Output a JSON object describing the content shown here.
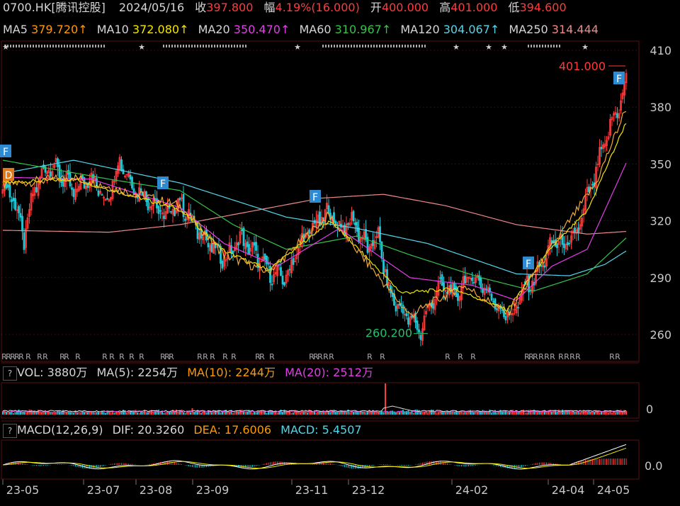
{
  "header": {
    "code": "0700.HK[腾讯控股]",
    "date": "2024/05/16",
    "close_label": "收",
    "close": "397.800",
    "change_label": "幅",
    "change": "4.19%(16.000)",
    "open_label": "开",
    "open": "400.000",
    "high_label": "高",
    "high": "401.000",
    "low_label": "低",
    "low": "394.600"
  },
  "ma_legend": [
    {
      "name": "MA5",
      "value": "379.720↑",
      "color": "#f2a93b"
    },
    {
      "name": "MA10",
      "value": "372.080↑",
      "color": "#f2e600"
    },
    {
      "name": "MA20",
      "value": "350.470↑",
      "color": "#e23ee8"
    },
    {
      "name": "MA60",
      "value": "310.967↑",
      "color": "#35c24b"
    },
    {
      "name": "MA120",
      "value": "304.067↑",
      "color": "#53d5ea"
    },
    {
      "name": "MA250",
      "value": "314.444",
      "color": "#f08a8a"
    }
  ],
  "volume_legend": {
    "help": "?",
    "vol": "VOL: 3880万",
    "ma5": "MA(5): 2254万",
    "ma10": "MA(10): 2244万",
    "ma20": "MA(20): 2512万"
  },
  "macd_legend": {
    "help": "?",
    "name": "MACD(12,26,9)",
    "dif": "DIF: 20.3260",
    "dea": "DEA: 17.6006",
    "macd": "MACD: 5.4507"
  },
  "chart_data": {
    "type": "candlestick",
    "price_axis": {
      "ticks": [
        410,
        380,
        350,
        320,
        290,
        260
      ]
    },
    "volume_axis": {
      "ticks": [
        0
      ]
    },
    "macd_axis": {
      "ticks": [
        "0.0"
      ]
    },
    "x_ticks": [
      "23-05",
      "23-07",
      "23-08",
      "23-09",
      "23-11",
      "23-12",
      "24-02",
      "24-04",
      "24-05"
    ],
    "annotations": {
      "high": "401.000",
      "low": "260.200",
      "markers": [
        "F",
        "D",
        "F",
        "F",
        "F",
        "F"
      ],
      "stars": [
        "★",
        "★",
        "★",
        "★",
        "★",
        "★",
        "★"
      ],
      "r_label": "R"
    },
    "anchor_closes": [
      [
        0,
        340
      ],
      [
        6,
        332
      ],
      [
        12,
        310
      ],
      [
        18,
        338
      ],
      [
        26,
        350
      ],
      [
        32,
        345
      ],
      [
        40,
        335
      ],
      [
        50,
        344
      ],
      [
        58,
        330
      ],
      [
        66,
        352
      ],
      [
        74,
        338
      ],
      [
        84,
        330
      ],
      [
        92,
        322
      ],
      [
        100,
        330
      ],
      [
        108,
        318
      ],
      [
        118,
        306
      ],
      [
        126,
        300
      ],
      [
        134,
        311
      ],
      [
        140,
        305
      ],
      [
        146,
        298
      ],
      [
        152,
        292
      ],
      [
        160,
        290
      ],
      [
        168,
        308
      ],
      [
        176,
        318
      ],
      [
        184,
        325
      ],
      [
        190,
        316
      ],
      [
        198,
        320
      ],
      [
        206,
        305
      ],
      [
        212,
        312
      ],
      [
        218,
        282
      ],
      [
        224,
        274
      ],
      [
        230,
        268
      ],
      [
        236,
        262
      ],
      [
        242,
        278
      ],
      [
        248,
        286
      ],
      [
        256,
        280
      ],
      [
        262,
        290
      ],
      [
        270,
        288
      ],
      [
        276,
        279
      ],
      [
        282,
        272
      ],
      [
        288,
        270
      ],
      [
        294,
        284
      ],
      [
        300,
        289
      ],
      [
        306,
        300
      ],
      [
        312,
        310
      ],
      [
        318,
        306
      ],
      [
        324,
        313
      ],
      [
        330,
        332
      ],
      [
        334,
        342
      ],
      [
        338,
        356
      ],
      [
        342,
        366
      ],
      [
        346,
        378
      ],
      [
        350,
        384
      ],
      [
        352,
        397.8
      ]
    ],
    "ma_series": [
      {
        "key": "ma250",
        "anchors": [
          [
            0,
            315
          ],
          [
            60,
            314
          ],
          [
            100,
            318
          ],
          [
            140,
            325
          ],
          [
            180,
            332
          ],
          [
            215,
            334
          ],
          [
            250,
            328
          ],
          [
            290,
            318
          ],
          [
            330,
            313
          ],
          [
            352,
            314.4
          ]
        ]
      },
      {
        "key": "ma120",
        "anchors": [
          [
            0,
            345
          ],
          [
            40,
            352
          ],
          [
            100,
            340
          ],
          [
            160,
            322
          ],
          [
            200,
            316
          ],
          [
            240,
            308
          ],
          [
            290,
            292
          ],
          [
            320,
            291
          ],
          [
            340,
            297
          ],
          [
            352,
            304.1
          ]
        ]
      },
      {
        "key": "ma60",
        "anchors": [
          [
            0,
            352
          ],
          [
            60,
            342
          ],
          [
            100,
            336
          ],
          [
            130,
            318
          ],
          [
            160,
            305
          ],
          [
            200,
            312
          ],
          [
            230,
            302
          ],
          [
            270,
            290
          ],
          [
            300,
            283
          ],
          [
            330,
            292
          ],
          [
            352,
            311
          ]
        ]
      },
      {
        "key": "ma20",
        "anchors": [
          [
            0,
            343
          ],
          [
            50,
            342
          ],
          [
            100,
            327
          ],
          [
            125,
            308
          ],
          [
            155,
            296
          ],
          [
            190,
            316
          ],
          [
            230,
            290
          ],
          [
            265,
            286
          ],
          [
            290,
            278
          ],
          [
            310,
            296
          ],
          [
            330,
            305
          ],
          [
            352,
            350.5
          ]
        ]
      },
      {
        "key": "ma10",
        "anchors": [
          [
            0,
            340
          ],
          [
            40,
            342
          ],
          [
            100,
            326
          ],
          [
            125,
            304
          ],
          [
            150,
            294
          ],
          [
            185,
            320
          ],
          [
            225,
            282
          ],
          [
            255,
            284
          ],
          [
            285,
            273
          ],
          [
            310,
            306
          ],
          [
            330,
            325
          ],
          [
            352,
            372.1
          ]
        ]
      },
      {
        "key": "ma5",
        "anchors": [
          [
            0,
            339
          ],
          [
            40,
            343
          ],
          [
            100,
            328
          ],
          [
            125,
            302
          ],
          [
            150,
            293
          ],
          [
            184,
            323
          ],
          [
            230,
            270
          ],
          [
            260,
            286
          ],
          [
            285,
            271
          ],
          [
            312,
            309
          ],
          [
            335,
            340
          ],
          [
            352,
            379.7
          ]
        ]
      }
    ]
  },
  "colors": {
    "up": "#ff3b3b",
    "down": "#1fc8d6",
    "grid": "#3a0c0c",
    "axis_text": "#c8c8c8",
    "dif": "#ffffff",
    "dea": "#f2e600"
  }
}
